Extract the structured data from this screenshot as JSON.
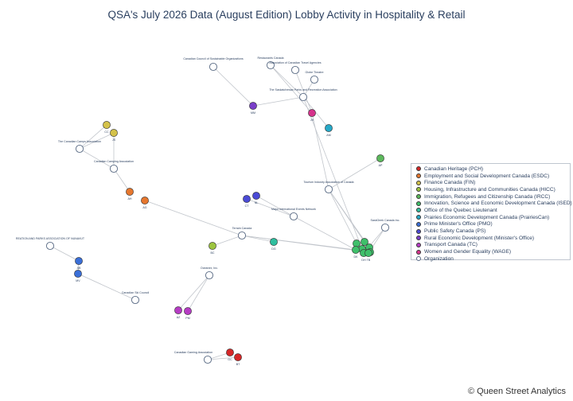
{
  "title": "QSA's July 2026 Data (August Edition) Lobby Activity in Hospitality & Retail",
  "credit": "© Queen Street Analytics",
  "legend": [
    {
      "name": "Canadian Heritage (PCH)",
      "color": "#d62728"
    },
    {
      "name": "Employment and Social Development Canada (ESDC)",
      "color": "#e6772e"
    },
    {
      "name": "Finance Canada (FIN)",
      "color": "#d4c24a"
    },
    {
      "name": "Housing, Infrastructure and Communities Canada (HICC)",
      "color": "#9cc43f"
    },
    {
      "name": "Immigration, Refugees and Citizenship Canada (IRCC)",
      "color": "#5cb85c"
    },
    {
      "name": "Innovation, Science and Economic Development Canada (ISED)",
      "color": "#3fbf6a"
    },
    {
      "name": "Office of the Quebec Lieutenant",
      "color": "#2fbf9f"
    },
    {
      "name": "Prairies Economic Development Canada (PrairiesCan)",
      "color": "#26a9c8"
    },
    {
      "name": "Prime Minister's Office (PMO)",
      "color": "#3a6fd8"
    },
    {
      "name": "Public Safety Canada (PS)",
      "color": "#4b4bd6"
    },
    {
      "name": "Rural Economic Development (Minister's Office)",
      "color": "#7a3fc9"
    },
    {
      "name": "Transport Canada (TC)",
      "color": "#b63cc4"
    },
    {
      "name": "Women and Gender Equality (WAGE)",
      "color": "#d6338c"
    },
    {
      "name": "Organization",
      "color": "#ffffff"
    }
  ],
  "chart_data": {
    "type": "network",
    "organizations": [
      {
        "id": "ccso",
        "label": "Canadian Council of Sustainable Organizations"
      },
      {
        "id": "rc",
        "label": "Restaurants Canada"
      },
      {
        "id": "actc",
        "label": "Association of Canadian Travel Agencies"
      },
      {
        "id": "gt",
        "label": "Globe Theatre"
      },
      {
        "id": "spra",
        "label": "The Saskatchewan Parks and Recreation Association"
      },
      {
        "id": "cca",
        "label": "The Canadian Camps Association"
      },
      {
        "id": "ccamp",
        "label": "Canadian Camping Association"
      },
      {
        "id": "tiac",
        "label": "Tourism Industry Association of Canada"
      },
      {
        "id": "mie",
        "label": "Major International Events Network"
      },
      {
        "id": "sask",
        "label": "SaskGeek Canada Inc."
      },
      {
        "id": "tc",
        "label": "Terrain Canada"
      },
      {
        "id": "rpan",
        "label": "REATION AND PARKS ASSOCIATION OF NUNAVUT"
      },
      {
        "id": "csc",
        "label": "Canadian Ski Council"
      },
      {
        "id": "oi",
        "label": "Oceanex, Inc."
      },
      {
        "id": "cga",
        "label": "Canadian Gaming Association"
      }
    ],
    "officials": [
      {
        "id": "mm",
        "label": "MM",
        "department": "Rural Economic Development (Minister's Office)"
      },
      {
        "id": "jh",
        "label": "JH",
        "department": "Women and Gender Equality (WAGE)"
      },
      {
        "id": "am",
        "label": "AM",
        "department": "Prairies Economic Development Canada (PrairiesCan)"
      },
      {
        "id": "cc",
        "label": "CC",
        "department": "Finance Canada (FIN)"
      },
      {
        "id": "js",
        "label": "JS",
        "department": "Finance Canada (FIN)"
      },
      {
        "id": "ah",
        "label": "AH",
        "department": "Employment and Social Development Canada (ESDC)"
      },
      {
        "id": "ag",
        "label": "AG",
        "department": "Employment and Social Development Canada (ESDC)"
      },
      {
        "id": "ap",
        "label": "AP",
        "department": "Immigration, Refugees and Citizenship Canada (IRCC)"
      },
      {
        "id": "ct",
        "label": "CT",
        "department": "Public Safety Canada (PS)"
      },
      {
        "id": "nl",
        "label": "NL",
        "department": "Public Safety Canada (PS)"
      },
      {
        "id": "bc",
        "label": "BC",
        "department": "Housing, Infrastructure and Communities Canada (HICC)"
      },
      {
        "id": "dg",
        "label": "DG",
        "department": "Office of the Quebec Lieutenant"
      },
      {
        "id": "i1",
        "label": "",
        "department": "Innovation, Science and Economic Development Canada (ISED)"
      },
      {
        "id": "i2",
        "label": "",
        "department": "Innovation, Science and Economic Development Canada (ISED)"
      },
      {
        "id": "i3",
        "label": "",
        "department": "Innovation, Science and Economic Development Canada (ISED)"
      },
      {
        "id": "i4",
        "label": "",
        "department": "Innovation, Science and Economic Development Canada (ISED)"
      },
      {
        "id": "i5",
        "label": "DK",
        "department": "Innovation, Science and Economic Development Canada (ISED)"
      },
      {
        "id": "i6",
        "label": "",
        "department": "Innovation, Science and Economic Development Canada (ISED)"
      },
      {
        "id": "i7",
        "label": "DH",
        "department": "Innovation, Science and Economic Development Canada (ISED)"
      },
      {
        "id": "i8",
        "label": "TB",
        "department": "Innovation, Science and Economic Development Canada (ISED)"
      },
      {
        "id": "ab",
        "label": "AB",
        "department": "Prime Minister's Office (PMO)"
      },
      {
        "id": "mv",
        "label": "MV",
        "department": "Prime Minister's Office (PMO)"
      },
      {
        "id": "az",
        "label": "AZ",
        "department": "Transport Canada (TC)"
      },
      {
        "id": "pm",
        "label": "PM",
        "department": "Transport Canada (TC)"
      },
      {
        "id": "gc",
        "label": "GC",
        "department": "Canadian Heritage (PCH)"
      },
      {
        "id": "bt",
        "label": "BT",
        "department": "Canadian Heritage (PCH)"
      }
    ],
    "edges": [
      [
        "ccso",
        "mm"
      ],
      [
        "rc",
        "spra"
      ],
      [
        "rc",
        "jh"
      ],
      [
        "actc",
        "jh"
      ],
      [
        "gt",
        "spra"
      ],
      [
        "spra",
        "mm"
      ],
      [
        "spra",
        "am"
      ],
      [
        "cca",
        "cc"
      ],
      [
        "cca",
        "js"
      ],
      [
        "cca",
        "ccamp"
      ],
      [
        "ccamp",
        "js"
      ],
      [
        "ccamp",
        "ah"
      ],
      [
        "ag",
        "tc"
      ],
      [
        "tiac",
        "ap"
      ],
      [
        "tiac",
        "i1"
      ],
      [
        "tiac",
        "i2"
      ],
      [
        "tiac",
        "i3"
      ],
      [
        "tiac",
        "jh"
      ],
      [
        "spra",
        "i4"
      ],
      [
        "mie",
        "ct"
      ],
      [
        "mie",
        "nl"
      ],
      [
        "mie",
        "i5"
      ],
      [
        "tc",
        "bc"
      ],
      [
        "tc",
        "dg"
      ],
      [
        "tc",
        "i5"
      ],
      [
        "tc",
        "i6"
      ],
      [
        "sask",
        "i7"
      ],
      [
        "sask",
        "i8"
      ],
      [
        "rpan",
        "ab"
      ],
      [
        "ab",
        "mv"
      ],
      [
        "mv",
        "csc"
      ],
      [
        "oi",
        "az"
      ],
      [
        "oi",
        "pm"
      ],
      [
        "cga",
        "gc"
      ],
      [
        "cga",
        "bt"
      ]
    ]
  }
}
